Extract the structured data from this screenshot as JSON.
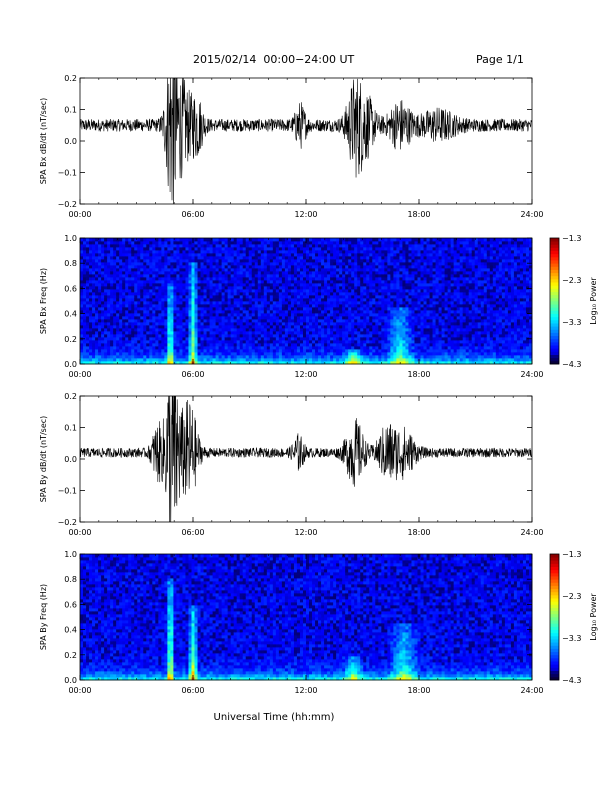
{
  "header": {
    "title": "2015/02/14  00:00−24:00 UT",
    "page": "Page 1/1"
  },
  "xlabel": "Universal Time (hh:mm)",
  "chart_data": [
    {
      "type": "line",
      "ylabel": "SPA Bx dB/dt (nT/sec)",
      "xlim": [
        0,
        24
      ],
      "x_tick_values": [
        0,
        6,
        12,
        18,
        24
      ],
      "x_tick_labels": [
        "00:00",
        "06:00",
        "12:00",
        "18:00",
        "24:00"
      ],
      "ylim": [
        -0.2,
        0.2
      ],
      "y_tick_values": [
        -0.2,
        -0.1,
        0.0,
        0.1,
        0.2
      ],
      "y_tick_labels": [
        "−0.2",
        "−0.1",
        "0.0",
        "0.1",
        "0.2"
      ],
      "baseline": 0.05,
      "noise_amp": 0.02,
      "color": "#000000",
      "bursts": [
        {
          "x": 4.9,
          "amp": 0.28,
          "width": 0.35
        },
        {
          "x": 5.5,
          "amp": 0.12,
          "width": 0.4
        },
        {
          "x": 6.2,
          "amp": 0.09,
          "width": 0.35
        },
        {
          "x": 11.7,
          "amp": 0.06,
          "width": 0.3
        },
        {
          "x": 14.6,
          "amp": 0.13,
          "width": 0.45
        },
        {
          "x": 15.2,
          "amp": 0.08,
          "width": 0.5
        },
        {
          "x": 17.0,
          "amp": 0.07,
          "width": 0.6
        },
        {
          "x": 19.0,
          "amp": 0.04,
          "width": 1.0
        }
      ]
    },
    {
      "type": "heatmap",
      "ylabel": "SPA Bx Freq (Hz)",
      "xlim": [
        0,
        24
      ],
      "x_tick_values": [
        0,
        6,
        12,
        18,
        24
      ],
      "x_tick_labels": [
        "00:00",
        "06:00",
        "12:00",
        "18:00",
        "24:00"
      ],
      "ylim": [
        0,
        1.0
      ],
      "y_tick_values": [
        0.0,
        0.2,
        0.4,
        0.6,
        0.8,
        1.0
      ],
      "y_tick_labels": [
        "0.0",
        "0.2",
        "0.4",
        "0.6",
        "0.8",
        "1.0"
      ],
      "colorbar_label": "Log₁₀ Power",
      "colorbar_range": [
        -4.3,
        -1.3
      ],
      "colorbar_tick_values": [
        -1.3,
        -2.3,
        -3.3,
        -4.3
      ],
      "colorbar_tick_labels": [
        "−1.3",
        "−2.3",
        "−3.3",
        "−4.3"
      ],
      "features": [
        {
          "x": 4.8,
          "width": 0.25,
          "fmax": 0.65,
          "level": 0.45
        },
        {
          "x": 6.0,
          "width": 0.3,
          "fmax": 0.8,
          "level": 0.4
        },
        {
          "x": 14.5,
          "width": 0.6,
          "fmax": 0.12,
          "level": 0.35
        },
        {
          "x": 17.0,
          "width": 0.8,
          "fmax": 0.45,
          "level": 0.3
        }
      ]
    },
    {
      "type": "line",
      "ylabel": "SPA By dB/dt (nT/sec)",
      "xlim": [
        0,
        24
      ],
      "x_tick_values": [
        0,
        6,
        12,
        18,
        24
      ],
      "x_tick_labels": [
        "00:00",
        "06:00",
        "12:00",
        "18:00",
        "24:00"
      ],
      "ylim": [
        -0.2,
        0.2
      ],
      "y_tick_values": [
        -0.2,
        -0.1,
        0.0,
        0.1,
        0.2
      ],
      "y_tick_labels": [
        "−0.2",
        "−0.1",
        "0.0",
        "0.1",
        "0.2"
      ],
      "baseline": 0.02,
      "noise_amp": 0.015,
      "color": "#000000",
      "bursts": [
        {
          "x": 4.1,
          "amp": 0.08,
          "width": 0.3
        },
        {
          "x": 4.9,
          "amp": 0.3,
          "width": 0.4
        },
        {
          "x": 5.8,
          "amp": 0.16,
          "width": 0.45
        },
        {
          "x": 11.6,
          "amp": 0.05,
          "width": 0.3
        },
        {
          "x": 14.6,
          "amp": 0.1,
          "width": 0.5
        },
        {
          "x": 16.3,
          "amp": 0.08,
          "width": 0.5
        },
        {
          "x": 17.2,
          "amp": 0.07,
          "width": 0.6
        }
      ]
    },
    {
      "type": "heatmap",
      "ylabel": "SPA By Freq (Hz)",
      "xlim": [
        0,
        24
      ],
      "x_tick_values": [
        0,
        6,
        12,
        18,
        24
      ],
      "x_tick_labels": [
        "00:00",
        "06:00",
        "12:00",
        "18:00",
        "24:00"
      ],
      "ylim": [
        0,
        1.0
      ],
      "y_tick_values": [
        0.0,
        0.2,
        0.4,
        0.6,
        0.8,
        1.0
      ],
      "y_tick_labels": [
        "0.0",
        "0.2",
        "0.4",
        "0.6",
        "0.8",
        "1.0"
      ],
      "colorbar_label": "Log₁₀ Power",
      "colorbar_range": [
        -4.3,
        -1.3
      ],
      "colorbar_tick_values": [
        -1.3,
        -2.3,
        -3.3,
        -4.3
      ],
      "colorbar_tick_labels": [
        "−1.3",
        "−2.3",
        "−3.3",
        "−4.3"
      ],
      "features": [
        {
          "x": 4.8,
          "width": 0.25,
          "fmax": 0.8,
          "level": 0.5
        },
        {
          "x": 6.0,
          "width": 0.3,
          "fmax": 0.6,
          "level": 0.45
        },
        {
          "x": 14.5,
          "width": 0.6,
          "fmax": 0.2,
          "level": 0.3
        },
        {
          "x": 17.2,
          "width": 0.9,
          "fmax": 0.45,
          "level": 0.3
        }
      ]
    }
  ]
}
